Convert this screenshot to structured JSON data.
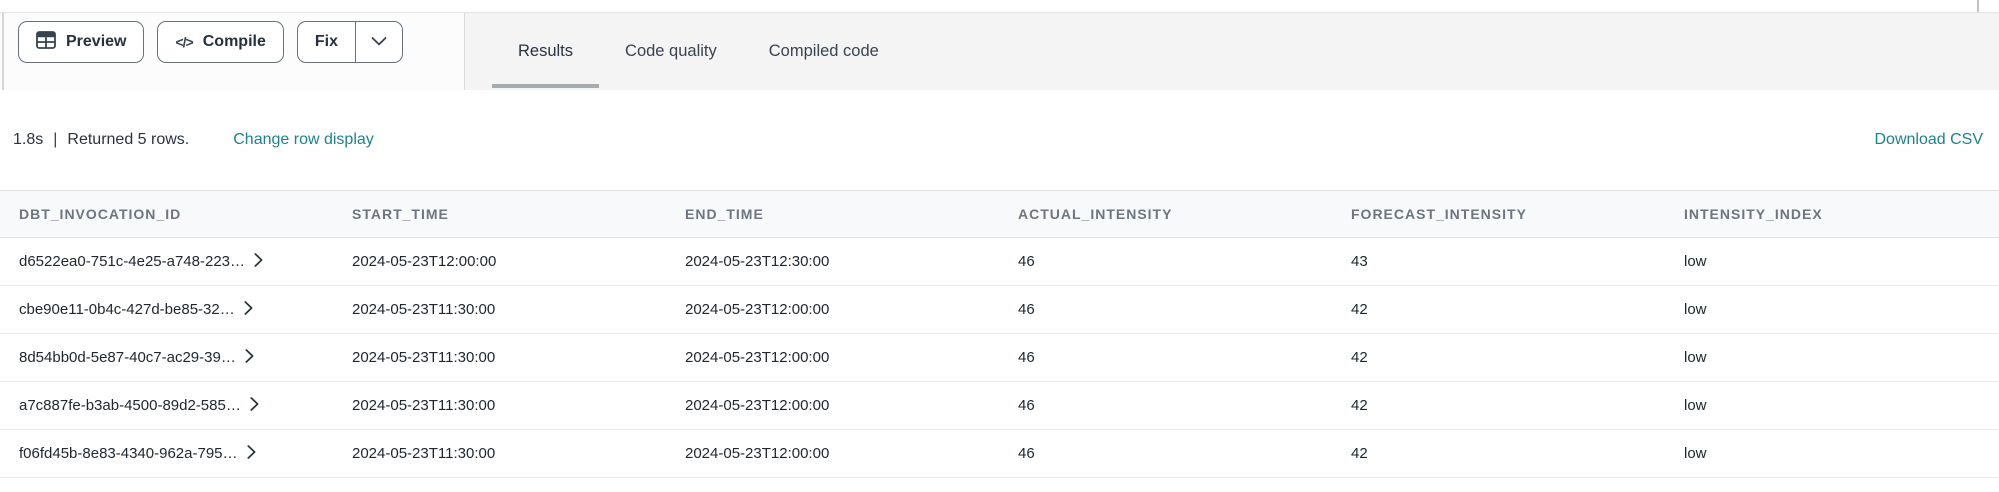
{
  "toolbar": {
    "preview_label": "Preview",
    "compile_label": "Compile",
    "fix_label": "Fix"
  },
  "tabs": [
    {
      "label": "Results",
      "active": true
    },
    {
      "label": "Code quality",
      "active": false
    },
    {
      "label": "Compiled code",
      "active": false
    }
  ],
  "status": {
    "duration": "1.8s",
    "separator": "|",
    "message": "Returned 5 rows.",
    "change_row_display_label": "Change row display",
    "download_csv_label": "Download CSV"
  },
  "results_table": {
    "columns": [
      "DBT_INVOCATION_ID",
      "START_TIME",
      "END_TIME",
      "ACTUAL_INTENSITY",
      "FORECAST_INTENSITY",
      "INTENSITY_INDEX"
    ],
    "rows": [
      [
        "d6522ea0-751c-4e25-a748-223…",
        "2024-05-23T12:00:00",
        "2024-05-23T12:30:00",
        "46",
        "43",
        "low"
      ],
      [
        "cbe90e11-0b4c-427d-be85-32…",
        "2024-05-23T11:30:00",
        "2024-05-23T12:00:00",
        "46",
        "42",
        "low"
      ],
      [
        "8d54bb0d-5e87-40c7-ac29-39…",
        "2024-05-23T11:30:00",
        "2024-05-23T12:00:00",
        "46",
        "42",
        "low"
      ],
      [
        "a7c887fe-b3ab-4500-89d2-585…",
        "2024-05-23T11:30:00",
        "2024-05-23T12:00:00",
        "46",
        "42",
        "low"
      ],
      [
        "f06fd45b-8e83-4340-962a-795…",
        "2024-05-23T11:30:00",
        "2024-05-23T12:00:00",
        "46",
        "42",
        "low"
      ]
    ]
  },
  "icons": {
    "preview": "table-grid-icon",
    "compile": "code-brackets-icon",
    "compile_glyph": "</>",
    "fix_dropdown": "chevron-down-icon",
    "row_expand": "chevron-right-icon"
  },
  "colors": {
    "link_teal": "#1f8288",
    "active_tab_underline": "#a6abb1"
  }
}
